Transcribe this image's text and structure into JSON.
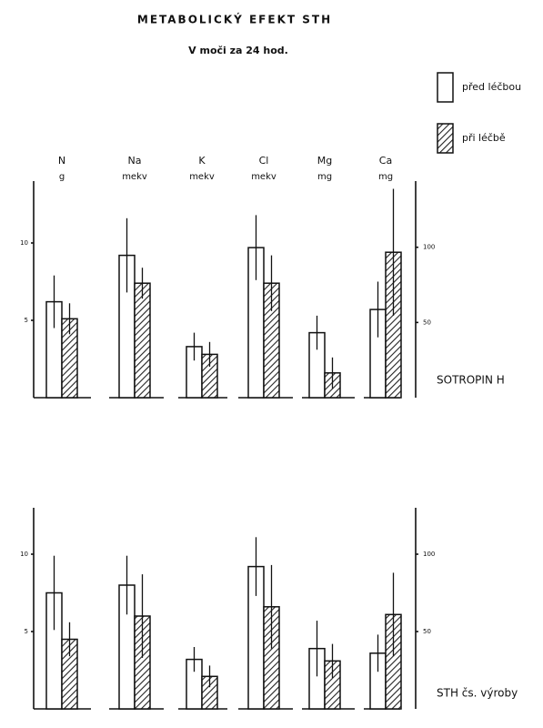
{
  "chart_data": [
    {
      "type": "bar",
      "title": "METABOLICKÝ EFEKT STH",
      "subtitle": "V moči za 24 hod.",
      "panel_label": "SOTROPIN H",
      "categories": [
        "N",
        "Na",
        "K",
        "Cl",
        "Mg",
        "Ca"
      ],
      "units": [
        "g",
        "mekv",
        "mekv",
        "mekv",
        "mg",
        "mg"
      ],
      "series": [
        {
          "name": "před léčbou",
          "color": "#ffffff",
          "hatch": false,
          "values": [
            6.2,
            9.2,
            3.3,
            9.7,
            4.2,
            5.7
          ],
          "errors": [
            1.7,
            2.4,
            0.9,
            2.1,
            1.1,
            1.8
          ]
        },
        {
          "name": "při léčbě",
          "color": "#222222",
          "hatch": true,
          "values": [
            5.1,
            7.4,
            2.8,
            7.4,
            1.6,
            9.4
          ],
          "errors": [
            1.0,
            1.0,
            0.8,
            1.8,
            1.0,
            4.1
          ]
        }
      ],
      "ylim": [
        0,
        14
      ],
      "yticks": [
        5,
        10
      ],
      "y2lim": [
        0,
        144
      ],
      "y2ticks": [
        50,
        100
      ],
      "grid": false
    },
    {
      "type": "bar",
      "panel_label": "STH čs. výroby",
      "series": [
        {
          "color": "#ffffff",
          "hatch": false,
          "values": [
            7.5,
            8.0,
            3.2,
            9.2,
            3.9,
            3.6
          ],
          "errors": [
            2.4,
            1.9,
            0.8,
            1.9,
            1.8,
            1.2
          ]
        },
        {
          "color": "#222222",
          "hatch": true,
          "values": [
            4.5,
            6.0,
            2.1,
            6.6,
            3.1,
            6.1
          ],
          "errors": [
            1.1,
            2.7,
            0.7,
            2.7,
            1.1,
            2.7
          ]
        }
      ],
      "ylim": [
        0,
        13
      ],
      "yticks": [
        5,
        10
      ],
      "y2lim": [
        0,
        130
      ],
      "y2ticks": [
        50,
        100
      ],
      "grid": false
    }
  ]
}
